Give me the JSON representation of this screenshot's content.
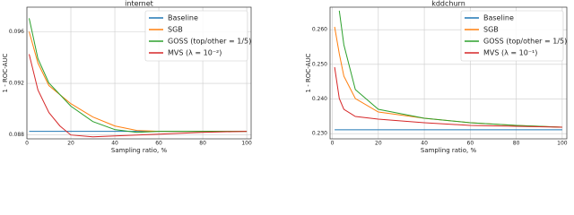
{
  "chart_data": [
    {
      "type": "line",
      "title": "internet",
      "xlabel": "Sampling ratio, %",
      "ylabel": "1 - ROC-AUC",
      "xlim": [
        0,
        102
      ],
      "xticks": [
        0,
        20,
        40,
        60,
        80,
        100
      ],
      "ylim": [
        0.0877,
        0.0979
      ],
      "yticks": [
        0.088,
        0.092,
        0.096
      ],
      "grid": true,
      "legend": "upper right",
      "series": [
        {
          "name": "Baseline",
          "color": "#1f77b4",
          "x": [
            1,
            100
          ],
          "values": [
            0.08828,
            0.08828
          ]
        },
        {
          "name": "SGB",
          "color": "#ff7f0e",
          "x": [
            1,
            5,
            10,
            20,
            30,
            40,
            50,
            60,
            80,
            100
          ],
          "values": [
            0.096,
            0.09357,
            0.09183,
            0.09043,
            0.08939,
            0.0887,
            0.08835,
            0.08828,
            0.08828,
            0.08828
          ]
        },
        {
          "name": "GOSS (top/other = 1/5)",
          "color": "#2ca02c",
          "x": [
            1,
            5,
            10,
            20,
            30,
            40,
            50,
            60,
            80,
            100
          ],
          "values": [
            0.09704,
            0.09391,
            0.09203,
            0.09023,
            0.08904,
            0.08842,
            0.08821,
            0.08828,
            0.08828,
            0.08828
          ]
        },
        {
          "name": "MVS (λ = 10⁻²)",
          "color": "#d62728",
          "x": [
            1,
            5,
            10,
            15,
            20,
            30,
            40,
            50,
            60,
            80,
            100
          ],
          "values": [
            0.09426,
            0.09148,
            0.08974,
            0.0887,
            0.088,
            0.08786,
            0.08793,
            0.088,
            0.08807,
            0.08821,
            0.08828
          ]
        }
      ]
    },
    {
      "type": "line",
      "title": "kddchurn",
      "xlabel": "Sampling ratio, %",
      "ylabel": "1 - ROC-AUC",
      "xlim": [
        -1,
        102
      ],
      "xticks": [
        0,
        20,
        40,
        60,
        80,
        100
      ],
      "ylim": [
        0.2285,
        0.2665
      ],
      "yticks": [
        {
          "value": 0.23,
          "label": "0.230"
        },
        {
          "value": 0.24,
          "label": "0.240"
        },
        {
          "value": 0.25,
          "label": "0.250"
        },
        {
          "value": 0.26,
          "label": "0.260"
        }
      ],
      "grid": true,
      "legend": "upper right",
      "series": [
        {
          "name": "Baseline",
          "color": "#1f77b4",
          "x": [
            1,
            100
          ],
          "values": [
            0.2311,
            0.2311
          ]
        },
        {
          "name": "SGB",
          "color": "#ff7f0e",
          "x": [
            1,
            3,
            5,
            10,
            20,
            40,
            60,
            80,
            100
          ],
          "values": [
            0.26081,
            0.25306,
            0.24659,
            0.24013,
            0.23625,
            0.23444,
            0.23315,
            0.23237,
            0.23186
          ]
        },
        {
          "name": "GOSS (top/other = 1/5)",
          "color": "#2ca02c",
          "x": [
            3,
            5,
            10,
            20,
            40,
            60,
            80,
            100
          ],
          "values": [
            0.2655,
            0.25564,
            0.24271,
            0.23703,
            0.23444,
            0.23315,
            0.23237,
            0.23186
          ]
        },
        {
          "name": "MVS (λ = 10⁻¹)",
          "color": "#d62728",
          "x": [
            1,
            3,
            5,
            10,
            20,
            40,
            60,
            80,
            100
          ],
          "values": [
            0.24918,
            0.24013,
            0.23703,
            0.23496,
            0.23418,
            0.23315,
            0.23237,
            0.23212,
            0.23186
          ]
        }
      ]
    }
  ]
}
